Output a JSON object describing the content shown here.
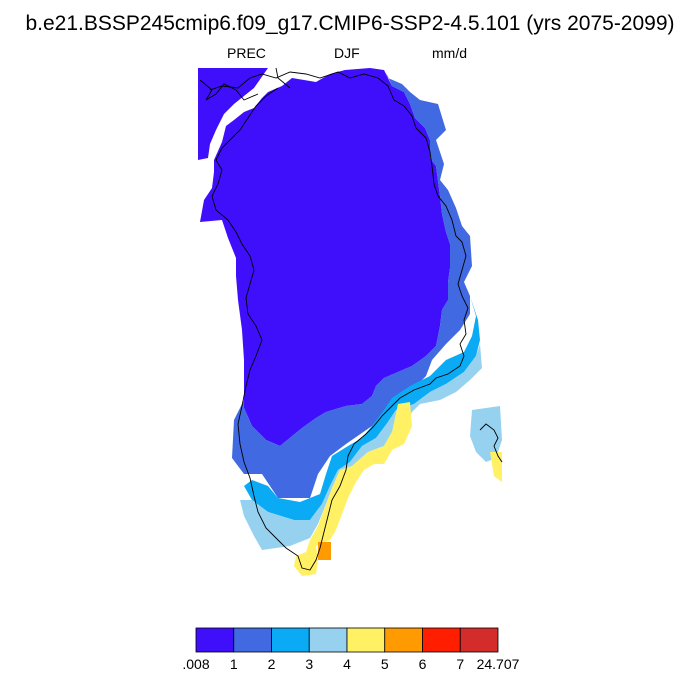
{
  "title": "b.e21.BSSP245cmip6.f09_g17.CMIP6-SSP2-4.5.101 (yrs 2075-2099)",
  "subtitle": {
    "variable": "PREC",
    "season": "DJF",
    "units": "mm/d"
  },
  "colorbar": {
    "colors": [
      "#3f0ffb",
      "#4169e1",
      "#0aaaf5",
      "#96d2f0",
      "#fff064",
      "#ff9b00",
      "#ff1e00",
      "#d42b2b"
    ],
    "labels": [
      ".008",
      "1",
      "2",
      "3",
      "4",
      "5",
      "6",
      "7",
      "24.707"
    ]
  }
}
